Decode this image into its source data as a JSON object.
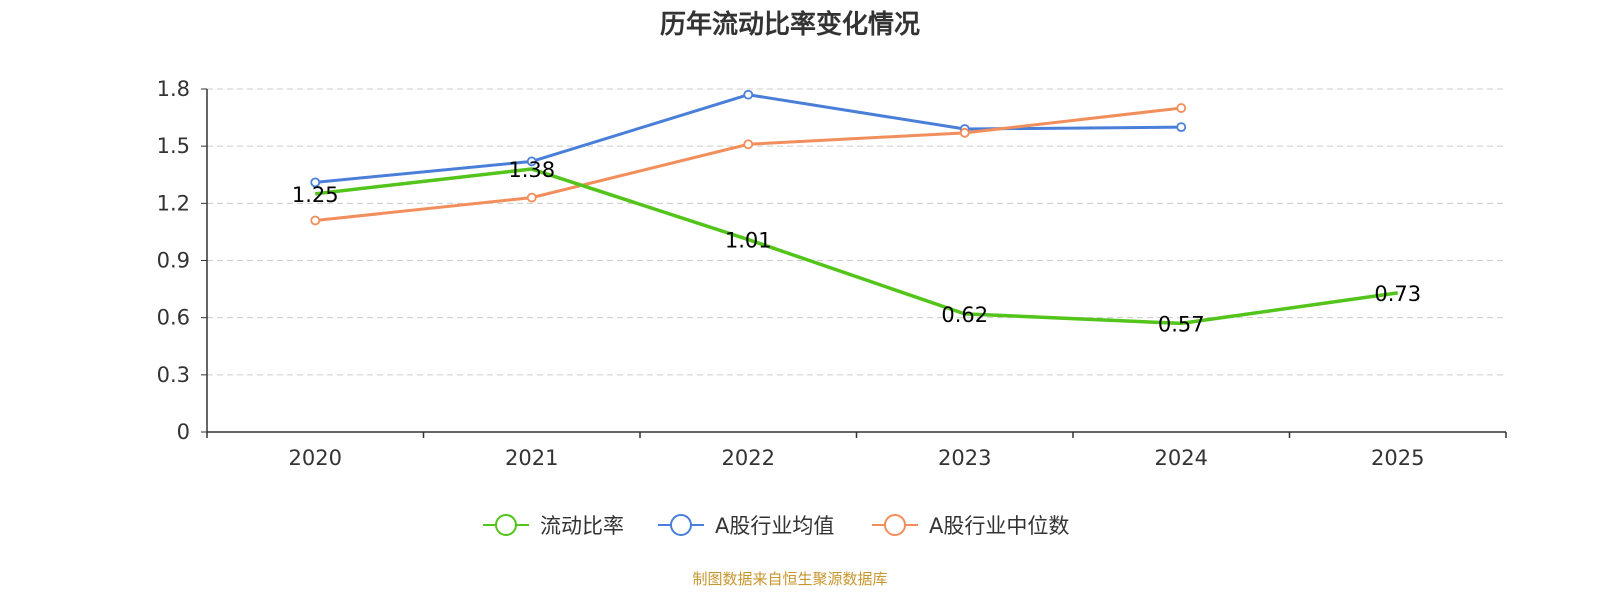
{
  "chart_data": {
    "type": "line",
    "title": "历年流动比率变化情况",
    "categories": [
      "2020",
      "2021",
      "2022",
      "2023",
      "2024",
      "2025"
    ],
    "ylim": [
      0,
      1.8
    ],
    "yticks": [
      "0",
      "0.3",
      "0.6",
      "0.9",
      "1.2",
      "1.5",
      "1.8"
    ],
    "grid": true,
    "legend_position": "bottom-center",
    "series": [
      {
        "name": "流动比率",
        "color": "#52c41a",
        "values": [
          1.25,
          1.38,
          1.01,
          0.62,
          0.57,
          0.73
        ],
        "labels": [
          "1.25",
          "1.38",
          "1.01",
          "0.62",
          "0.57",
          "0.73"
        ]
      },
      {
        "name": "A股行业均值",
        "color": "#4a7fd9",
        "values": [
          1.31,
          1.42,
          1.77,
          1.59,
          1.6,
          null
        ]
      },
      {
        "name": "A股行业中位数",
        "color": "#f28e5b",
        "values": [
          1.11,
          1.23,
          1.51,
          1.57,
          1.7,
          null
        ]
      }
    ],
    "source": "制图数据来自恒生聚源数据库"
  }
}
